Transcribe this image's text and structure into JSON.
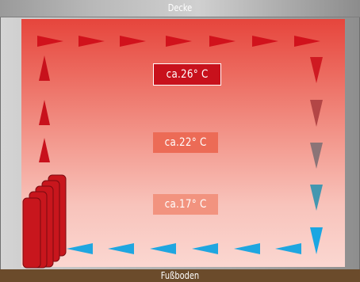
{
  "labels": {
    "ceiling": "Decke",
    "floor": "Fußboden"
  },
  "temperatures": {
    "top": "ca.26° C",
    "middle": "ca.22° C",
    "bottom": "ca.17° C"
  },
  "colors": {
    "warm_arrow": "#d1121c",
    "cool_arrow": "#1fa6e0",
    "floor": "#6b4b2b",
    "heater": "#c8161d"
  }
}
